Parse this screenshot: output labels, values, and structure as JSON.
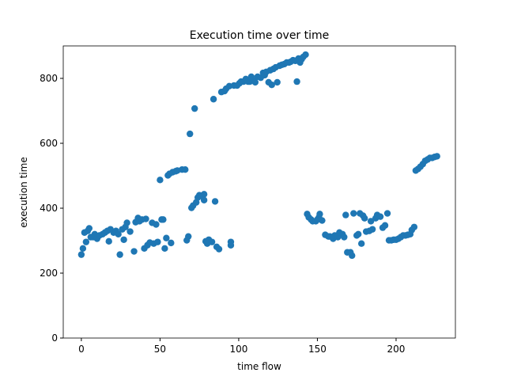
{
  "chart_data": {
    "type": "scatter",
    "title": "Execution time over time",
    "xlabel": "time flow",
    "ylabel": "execution time",
    "color": "#1f77b4",
    "x": [
      0,
      1,
      2,
      3,
      4,
      5,
      6,
      7.5,
      8.5,
      10,
      11.5,
      13.5,
      15,
      16.5,
      17.5,
      18.5,
      20.5,
      22,
      23.5,
      24.5,
      26,
      27,
      28,
      29,
      31,
      33.5,
      34.5,
      36,
      37,
      38.5,
      40,
      41,
      42,
      43.5,
      45,
      46,
      47.5,
      48.5,
      50,
      51,
      52,
      53,
      54,
      55,
      56,
      57,
      58,
      60,
      61,
      64,
      66,
      67,
      68,
      69,
      70,
      71,
      72,
      73,
      74,
      75,
      76,
      78,
      78,
      79,
      80,
      81,
      83,
      84,
      85,
      86,
      87.5,
      89,
      91,
      92,
      94,
      95,
      95,
      97,
      99,
      100.5,
      101.5,
      103,
      104.5,
      106,
      107,
      108,
      109,
      110.5,
      112,
      114,
      115.5,
      116.5,
      117.5,
      119,
      120,
      121,
      122,
      123.5,
      124.5,
      126,
      127.5,
      129,
      130.5,
      132,
      133,
      134.5,
      136,
      137,
      138,
      139,
      140,
      141,
      142.5,
      143.5,
      144.5,
      146,
      147,
      149,
      150,
      151,
      151.5,
      153,
      155,
      157,
      158,
      160,
      161,
      163,
      164,
      166,
      167,
      168,
      169,
      171,
      172,
      173,
      175,
      176,
      177,
      178,
      179,
      180,
      181,
      183,
      184,
      185,
      187,
      188,
      190,
      191.5,
      193,
      194.5,
      195.5,
      197,
      198.5,
      200,
      201.5,
      203,
      204.5,
      206,
      207.5,
      209,
      210,
      211.5,
      212.5,
      214,
      215.5,
      217,
      218.5,
      220,
      221.5,
      223,
      224.5,
      226
    ],
    "values": [
      257,
      276,
      325,
      296,
      330,
      338,
      311,
      311,
      320,
      306,
      316,
      320,
      325,
      330,
      298,
      335,
      325,
      330,
      320,
      257,
      335,
      303,
      342,
      355,
      328,
      267,
      357,
      370,
      360,
      365,
      276,
      367,
      286,
      294,
      355,
      291,
      350,
      296,
      487,
      365,
      365,
      276,
      308,
      501,
      506,
      293,
      511,
      514,
      516,
      519,
      519,
      301,
      313,
      629,
      401,
      408,
      707,
      418,
      433,
      440,
      438,
      443,
      425,
      298,
      291,
      303,
      296,
      736,
      421,
      281,
      274,
      758,
      761,
      768,
      776,
      286,
      296,
      778,
      778,
      785,
      790,
      790,
      798,
      790,
      790,
      805,
      793,
      788,
      805,
      802,
      817,
      810,
      820,
      788,
      825,
      780,
      829,
      834,
      788,
      839,
      842,
      844,
      849,
      849,
      851,
      856,
      854,
      790,
      861,
      849,
      859,
      866,
      873,
      382,
      372,
      365,
      360,
      360,
      365,
      372,
      382,
      362,
      318,
      313,
      313,
      306,
      316,
      311,
      325,
      320,
      311,
      379,
      264,
      264,
      254,
      384,
      316,
      320,
      384,
      291,
      377,
      369,
      328,
      330,
      360,
      335,
      369,
      379,
      374,
      340,
      347,
      384,
      301,
      301,
      303,
      303,
      306,
      311,
      316,
      316,
      318,
      320,
      333,
      342,
      516,
      521,
      528,
      536,
      546,
      550,
      555,
      555,
      558,
      560
    ],
    "xlim": [
      -11.5,
      237.7
    ],
    "ylim": [
      0,
      900
    ],
    "xticks": [
      0,
      50,
      100,
      150,
      200
    ],
    "yticks": [
      0,
      200,
      400,
      600,
      800
    ]
  }
}
